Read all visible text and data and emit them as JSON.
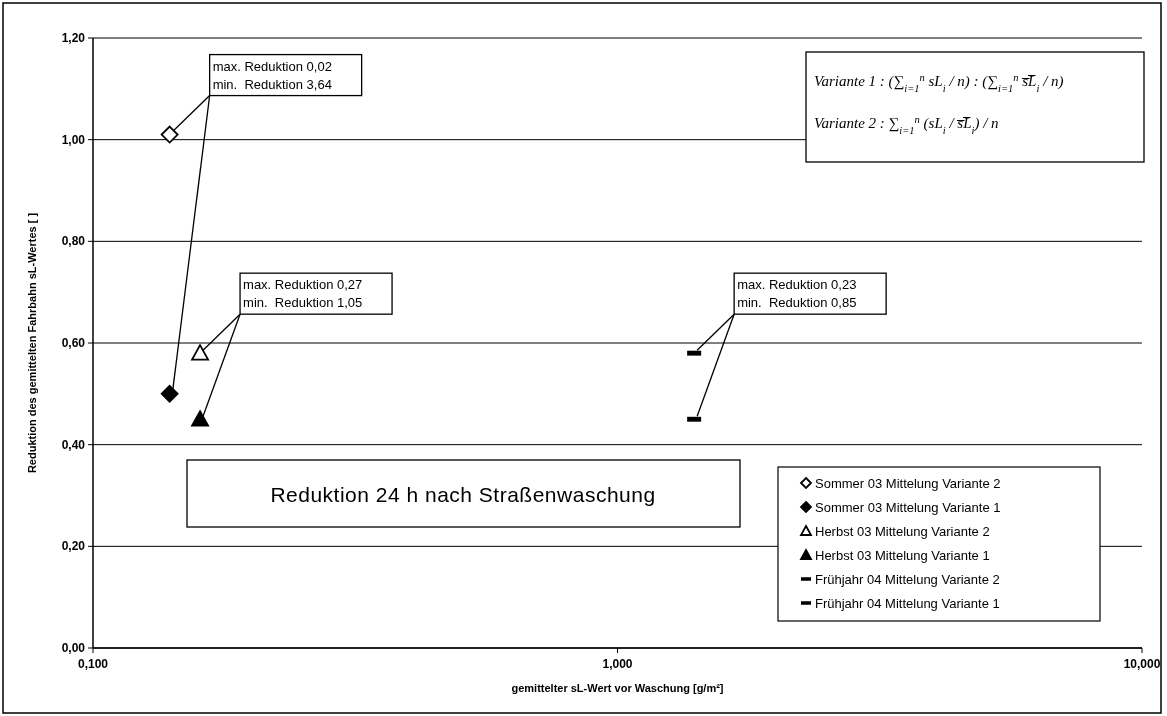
{
  "chart_data": {
    "type": "scatter",
    "xlabel": "gemittelter sL-Wert vor Waschung [g/m²]",
    "ylabel": "Reduktion des gemittelten Fahrbahn sL-Wertes [ ]",
    "log": "x",
    "grid": "y",
    "legend": "bottom right",
    "xlim": [
      0.1,
      10
    ],
    "xticks": [
      {
        "value": 0.1,
        "label": "0,100"
      },
      {
        "value": 1,
        "label": "1,000"
      },
      {
        "value": 10,
        "label": "10,000"
      }
    ],
    "ylim": [
      0,
      1.2
    ],
    "yticks": [
      {
        "value": 0,
        "label": "0,00"
      },
      {
        "value": 0.2,
        "label": "0,20"
      },
      {
        "value": 0.4,
        "label": "0,40"
      },
      {
        "value": 0.6,
        "label": "0,60"
      },
      {
        "value": 0.8,
        "label": "0,80"
      },
      {
        "value": 1,
        "label": "1,00"
      },
      {
        "value": 1.2,
        "label": "1,20"
      }
    ],
    "series": [
      {
        "name": "Sommer 03 Mittelung Variante 2",
        "color": "#ffffff",
        "marker": "diamond",
        "x": [
          0.14
        ],
        "values": [
          1.01
        ]
      },
      {
        "name": "Sommer 03 Mittelung Variante 1",
        "color": "#000000",
        "marker": "diamond",
        "x": [
          0.14
        ],
        "values": [
          0.5
        ]
      },
      {
        "name": "Herbst 03 Mittelung Variante 2",
        "color": "#ffffff",
        "marker": "triangle",
        "x": [
          0.16
        ],
        "values": [
          0.58
        ]
      },
      {
        "name": "Herbst 03 Mittelung Variante 1",
        "color": "#000000",
        "marker": "triangle",
        "x": [
          0.16
        ],
        "values": [
          0.45
        ]
      },
      {
        "name": "Frühjahr 04 Mittelung Variante 2",
        "color": "#000000",
        "marker": "square",
        "x": [
          1.4
        ],
        "values": [
          0.58
        ]
      },
      {
        "name": "Frühjahr 04 Mittelung Variante 1",
        "color": "#000000",
        "marker": "square",
        "x": [
          1.4
        ],
        "values": [
          0.45
        ]
      }
    ],
    "annotations": [
      {
        "text": "max. Reduktion 0,02\nmin.  Reduktion 3,64",
        "x": 0.14,
        "y": 1.01
      },
      {
        "text": "max. Reduktion 0,27\nmin.  Reduktion 1,05",
        "x": 0.16,
        "y": 0.58
      },
      {
        "text": "max. Reduktion 0,23\nmin.  Reduktion 0,85",
        "x": 1.4,
        "y": 0.58
      },
      "Reduktion 24 h nach Straßenwaschung",
      "Variante 1 : (∑$_{i=1}$$^{n}$ sL$_{i}$ / n) : (∑$_{i=1}$$^{n}$ s̅L̅$_{i}$ / n)",
      "Variante 2 : ∑$_{i=1}$$^{n}$ (sL$_{i}$ / s̅L̅$_{i}$) / n"
    ]
  }
}
